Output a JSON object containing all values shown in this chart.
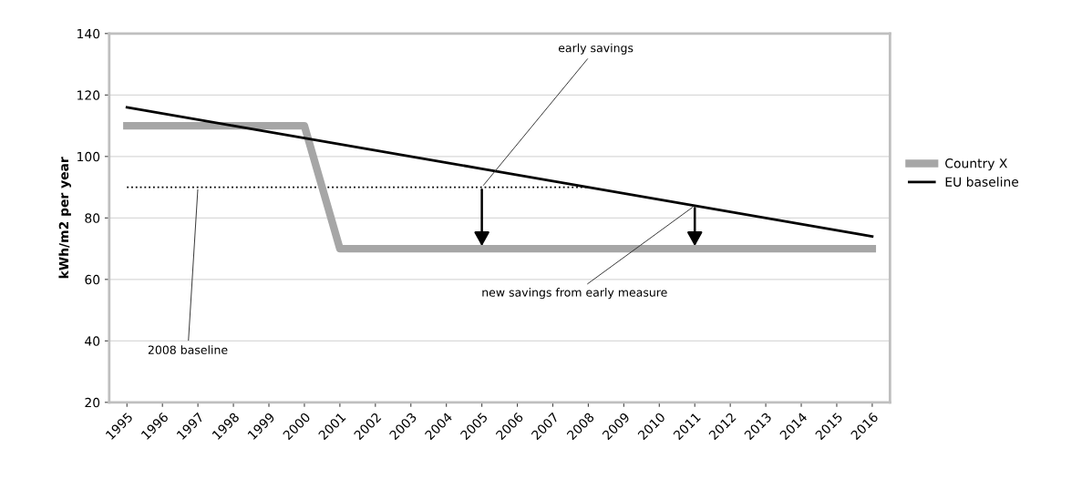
{
  "chart_data": {
    "type": "line",
    "ylabel": "kWh/m2 per year",
    "categories": [
      "1995",
      "1996",
      "1997",
      "1998",
      "1999",
      "2000",
      "2001",
      "2002",
      "2003",
      "2004",
      "2005",
      "2006",
      "2007",
      "2008",
      "2009",
      "2010",
      "2011",
      "2012",
      "2013",
      "2014",
      "2015",
      "2016"
    ],
    "series": [
      {
        "name": "Country X",
        "color": "#a6a6a6",
        "values": [
          110,
          110,
          110,
          110,
          110,
          110,
          70,
          70,
          70,
          70,
          70,
          70,
          70,
          70,
          70,
          70,
          70,
          70,
          70,
          70,
          70,
          70
        ]
      },
      {
        "name": "EU baseline",
        "color": "#000000",
        "values": [
          116,
          114,
          112,
          110,
          108,
          106,
          104,
          102,
          100,
          98,
          96,
          94,
          92,
          90,
          88,
          86,
          84,
          82,
          80,
          78,
          76,
          74
        ]
      },
      {
        "color": "#000000",
        "line_style": "dotted",
        "values": [
          90,
          90,
          90,
          90,
          90,
          90,
          90,
          90,
          90,
          90,
          90,
          90,
          90,
          90,
          null,
          null,
          null,
          null,
          null,
          null,
          null,
          null
        ]
      }
    ],
    "ylim": [
      20,
      140
    ],
    "yticks": [
      20,
      40,
      60,
      80,
      100,
      120,
      140
    ],
    "grid": "y",
    "legend": "right",
    "annotations": [
      {
        "text": "early savings",
        "x": "2005",
        "y": 90
      },
      {
        "text": "new savings from early measure",
        "x": "2011",
        "y": 84
      },
      {
        "text": "2008 baseline",
        "x": "1997",
        "y": 90
      }
    ]
  }
}
